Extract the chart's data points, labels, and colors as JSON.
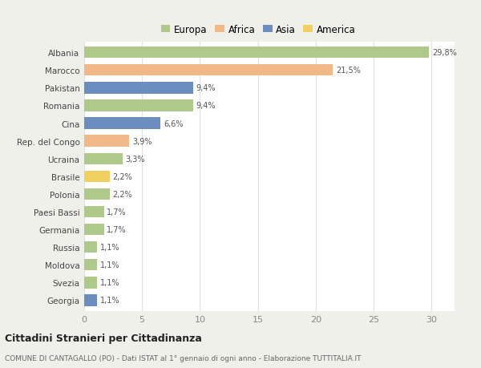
{
  "categories": [
    "Albania",
    "Marocco",
    "Pakistan",
    "Romania",
    "Cina",
    "Rep. del Congo",
    "Ucraina",
    "Brasile",
    "Polonia",
    "Paesi Bassi",
    "Germania",
    "Russia",
    "Moldova",
    "Svezia",
    "Georgia"
  ],
  "values": [
    29.8,
    21.5,
    9.4,
    9.4,
    6.6,
    3.9,
    3.3,
    2.2,
    2.2,
    1.7,
    1.7,
    1.1,
    1.1,
    1.1,
    1.1
  ],
  "labels": [
    "29,8%",
    "21,5%",
    "9,4%",
    "9,4%",
    "6,6%",
    "3,9%",
    "3,3%",
    "2,2%",
    "2,2%",
    "1,7%",
    "1,7%",
    "1,1%",
    "1,1%",
    "1,1%",
    "1,1%"
  ],
  "continents": [
    "Europa",
    "Africa",
    "Asia",
    "Europa",
    "Asia",
    "Africa",
    "Europa",
    "America",
    "Europa",
    "Europa",
    "Europa",
    "Europa",
    "Europa",
    "Europa",
    "Asia"
  ],
  "colors": {
    "Europa": "#aec98a",
    "Africa": "#f0b987",
    "Asia": "#6b8dbf",
    "America": "#f0d060"
  },
  "title": "Cittadini Stranieri per Cittadinanza",
  "subtitle": "COMUNE DI CANTAGALLO (PO) - Dati ISTAT al 1° gennaio di ogni anno - Elaborazione TUTTITALIA.IT",
  "xlim": [
    0,
    32
  ],
  "background_color": "#f0f0eb",
  "plot_background": "#ffffff",
  "grid_color": "#e0e0e0",
  "bar_height": 0.65,
  "legend_order": [
    "Europa",
    "Africa",
    "Asia",
    "America"
  ]
}
